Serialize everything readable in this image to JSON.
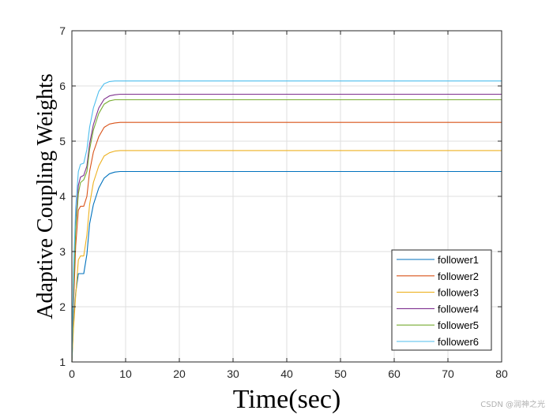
{
  "chart_data": {
    "type": "line",
    "title": "",
    "xlabel": "Time(sec)",
    "ylabel": "Adaptive Coupling Weights",
    "xlim": [
      0,
      80
    ],
    "ylim": [
      1,
      7
    ],
    "xticks": [
      0,
      10,
      20,
      30,
      40,
      50,
      60,
      70,
      80
    ],
    "yticks": [
      1,
      2,
      3,
      4,
      5,
      6,
      7
    ],
    "grid": true,
    "legend_position": "bottom-right",
    "series": [
      {
        "name": "follower1",
        "color": "#0072BD",
        "x": [
          0,
          0.3,
          0.7,
          1.2,
          1.6,
          2.2,
          2.8,
          3.3,
          4.0,
          5.0,
          6.0,
          7.0,
          8.0,
          9.0,
          10.0,
          80
        ],
        "y": [
          1.0,
          1.7,
          2.25,
          2.6,
          2.6,
          2.6,
          2.95,
          3.5,
          3.85,
          4.15,
          4.33,
          4.41,
          4.44,
          4.45,
          4.45,
          4.45
        ]
      },
      {
        "name": "follower2",
        "color": "#D95319",
        "x": [
          0,
          0.3,
          0.7,
          1.2,
          1.6,
          2.2,
          2.8,
          3.3,
          4.0,
          5.0,
          6.0,
          7.0,
          8.0,
          9.0,
          10.0,
          80
        ],
        "y": [
          1.0,
          2.0,
          3.1,
          3.75,
          3.82,
          3.82,
          4.0,
          4.45,
          4.8,
          5.08,
          5.25,
          5.31,
          5.33,
          5.34,
          5.34,
          5.34
        ]
      },
      {
        "name": "follower3",
        "color": "#EDB120",
        "x": [
          0,
          0.3,
          0.7,
          1.2,
          1.6,
          2.2,
          2.8,
          3.3,
          4.0,
          5.0,
          6.0,
          7.0,
          8.0,
          9.0,
          10.0,
          80
        ],
        "y": [
          1.0,
          1.6,
          2.2,
          2.85,
          2.92,
          2.92,
          3.3,
          3.85,
          4.25,
          4.55,
          4.73,
          4.79,
          4.82,
          4.83,
          4.83,
          4.83
        ]
      },
      {
        "name": "follower4",
        "color": "#7E2F8E",
        "x": [
          0,
          0.3,
          0.7,
          1.2,
          1.6,
          2.2,
          2.8,
          3.3,
          4.0,
          5.0,
          6.0,
          7.0,
          8.0,
          9.0,
          10.0,
          80
        ],
        "y": [
          1.0,
          2.4,
          3.5,
          4.2,
          4.35,
          4.38,
          4.55,
          4.95,
          5.3,
          5.6,
          5.76,
          5.82,
          5.84,
          5.85,
          5.85,
          5.85
        ]
      },
      {
        "name": "follower5",
        "color": "#77AC30",
        "x": [
          0,
          0.3,
          0.7,
          1.2,
          1.6,
          2.2,
          2.8,
          3.3,
          4.0,
          5.0,
          6.0,
          7.0,
          8.0,
          9.0,
          10.0,
          80
        ],
        "y": [
          1.0,
          2.3,
          3.4,
          4.05,
          4.25,
          4.3,
          4.45,
          4.85,
          5.2,
          5.5,
          5.67,
          5.73,
          5.75,
          5.75,
          5.75,
          5.75
        ]
      },
      {
        "name": "follower6",
        "color": "#4DBEEE",
        "x": [
          0,
          0.3,
          0.7,
          1.2,
          1.6,
          2.2,
          2.8,
          3.3,
          4.0,
          5.0,
          6.0,
          7.0,
          8.0,
          9.0,
          10.0,
          80
        ],
        "y": [
          1.0,
          2.6,
          3.8,
          4.45,
          4.58,
          4.6,
          4.85,
          5.25,
          5.6,
          5.9,
          6.04,
          6.08,
          6.09,
          6.09,
          6.09,
          6.09
        ]
      }
    ]
  },
  "watermark": "CSDN @润神之光"
}
